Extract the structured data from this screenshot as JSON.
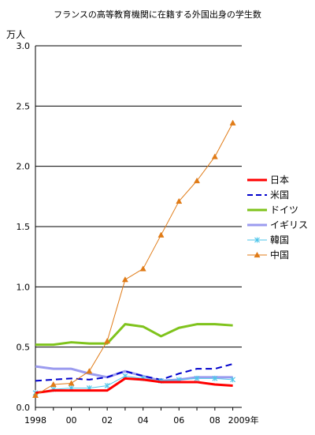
{
  "chart_data": {
    "type": "line",
    "title": "フランスの高等教育機関に在籍する外国出身の学生数",
    "y_unit": "万人",
    "x": [
      1998,
      1999,
      2000,
      2001,
      2002,
      2003,
      2004,
      2005,
      2006,
      2007,
      2008,
      2009
    ],
    "x_tick_labels": [
      {
        "x": 1998,
        "label": "1998"
      },
      {
        "x": 2000,
        "label": "00"
      },
      {
        "x": 2002,
        "label": "02"
      },
      {
        "x": 2004,
        "label": "04"
      },
      {
        "x": 2006,
        "label": "06"
      },
      {
        "x": 2008,
        "label": "08"
      },
      {
        "x": 2009,
        "label": "2009年"
      }
    ],
    "y_ticks": [
      {
        "value": 0.0,
        "label": "0.0"
      },
      {
        "value": 0.5,
        "label": "0.5"
      },
      {
        "value": 1.0,
        "label": "1.0"
      },
      {
        "value": 1.5,
        "label": "1.5"
      },
      {
        "value": 2.0,
        "label": "2.0"
      },
      {
        "value": 2.5,
        "label": "2.5"
      },
      {
        "value": 3.0,
        "label": "3.0"
      }
    ],
    "xlim": [
      1998,
      2009.5
    ],
    "ylim": [
      0,
      3.0
    ],
    "grid": "horizontal",
    "legend_position": "right",
    "series": [
      {
        "name": "日本",
        "color": "#ff0000",
        "style": "solid",
        "marker": "none",
        "width": 3,
        "values": [
          0.12,
          0.14,
          0.14,
          0.14,
          0.14,
          0.24,
          0.23,
          0.21,
          0.21,
          0.21,
          0.19,
          0.18
        ]
      },
      {
        "name": "米国",
        "color": "#0000cc",
        "style": "dashed",
        "marker": "none",
        "width": 2,
        "values": [
          0.22,
          0.23,
          0.24,
          0.23,
          0.25,
          0.3,
          0.26,
          0.23,
          0.28,
          0.32,
          0.32,
          0.36
        ]
      },
      {
        "name": "ドイツ",
        "color": "#7fc31c",
        "style": "solid",
        "marker": "none",
        "width": 3,
        "values": [
          0.52,
          0.52,
          0.54,
          0.53,
          0.53,
          0.69,
          0.67,
          0.59,
          0.66,
          0.69,
          0.69,
          0.68
        ]
      },
      {
        "name": "イギリス",
        "color": "#9b9bef",
        "style": "solid",
        "marker": "none",
        "width": 3,
        "values": [
          0.34,
          0.32,
          0.32,
          0.28,
          0.25,
          0.3,
          0.26,
          0.22,
          0.23,
          0.25,
          0.25,
          0.25
        ]
      },
      {
        "name": "韓国",
        "color": "#4fc6ea",
        "style": "solid",
        "marker": "x",
        "width": 1,
        "values": [
          0.12,
          0.15,
          0.16,
          0.16,
          0.18,
          0.26,
          0.24,
          0.22,
          0.23,
          0.24,
          0.24,
          0.23
        ]
      },
      {
        "name": "中国",
        "color": "#e07b17",
        "style": "solid",
        "marker": "triangle",
        "width": 1,
        "values": [
          0.1,
          0.19,
          0.2,
          0.3,
          0.55,
          1.06,
          1.15,
          1.43,
          1.71,
          1.88,
          2.08,
          2.36
        ]
      }
    ]
  }
}
